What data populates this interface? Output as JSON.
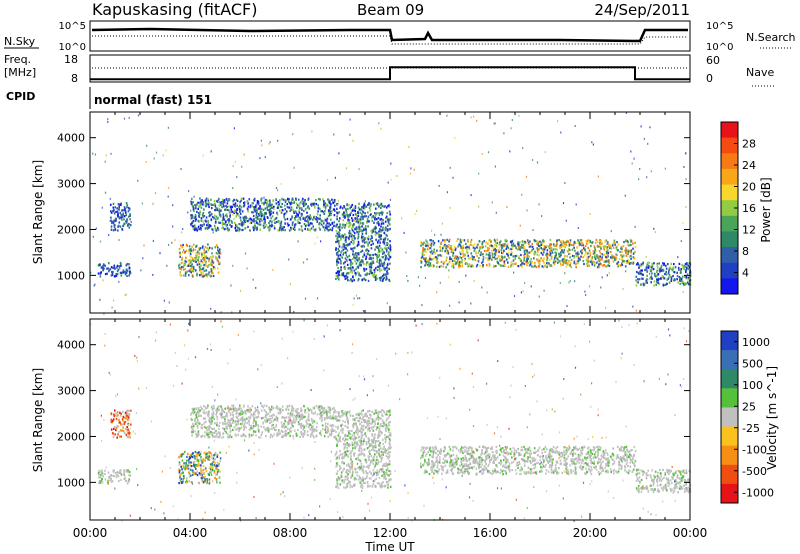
{
  "header": {
    "station": "Kapuskasing (fitACF)",
    "beam": "Beam 09",
    "date": "24/Sep/2011"
  },
  "panels": {
    "nsky": {
      "left_label": "N.Sky",
      "right_label": "N.Search",
      "left_ticks": [
        "10^5",
        "10^0"
      ],
      "right_ticks": [
        "10^5",
        "10^0"
      ]
    },
    "freq": {
      "left_label_top": "Freq.",
      "left_label_bottom": "[MHz]",
      "left_ticks": [
        "18",
        "8"
      ],
      "right_label": "Nave",
      "right_ticks": [
        "60",
        "0"
      ]
    },
    "cpid": {
      "label": "CPID",
      "text": "normal (fast) 151"
    }
  },
  "power_colorbar": {
    "title": "Power [dB]",
    "labels": [
      "28",
      "24",
      "20",
      "16",
      "12",
      "8",
      "4"
    ],
    "colors": [
      "#e8131a",
      "#f54a10",
      "#f77a14",
      "#f9a719",
      "#f8d62a",
      "#93cc43",
      "#4aa45a",
      "#2e8a66",
      "#2f5fa8",
      "#1f3fc4",
      "#1515ee"
    ]
  },
  "velocity_colorbar": {
    "title": "Velocity [m s^-1]",
    "labels": [
      "1000",
      "500",
      "100",
      "25",
      "-25",
      "-100",
      "-500",
      "-1000"
    ],
    "colors": [
      "#1f3fc4",
      "#3b6fb5",
      "#2e8a66",
      "#55c03a",
      "#c0c0c0",
      "#f9c21c",
      "#f78f14",
      "#f04e10",
      "#e8131a"
    ]
  },
  "time_axis": {
    "title": "Time UT",
    "ticks": [
      "00:00",
      "04:00",
      "08:00",
      "12:00",
      "16:00",
      "20:00",
      "00:00"
    ]
  },
  "chart_data": [
    {
      "type": "heatmap",
      "name": "power",
      "ylabel": "Slant Range [km]",
      "xlabel": "",
      "xlim": [
        0,
        24
      ],
      "ylim": [
        180,
        4560
      ],
      "y_ticks": [
        1000,
        2000,
        3000,
        4000
      ],
      "units_x": "hours UT",
      "echo_regions": [
        {
          "x": [
            0.3,
            1.6
          ],
          "y": [
            1000,
            1300
          ],
          "level": "low"
        },
        {
          "x": [
            0.8,
            1.6
          ],
          "y": [
            2000,
            2600
          ],
          "level": "low"
        },
        {
          "x": [
            3.5,
            5.2
          ],
          "y": [
            1000,
            1700
          ],
          "level": "high"
        },
        {
          "x": [
            4.0,
            9.8
          ],
          "y": [
            2000,
            2700
          ],
          "level": "mid"
        },
        {
          "x": [
            9.8,
            12.0
          ],
          "y": [
            900,
            2600
          ],
          "level": "mid"
        },
        {
          "x": [
            13.2,
            21.8
          ],
          "y": [
            1200,
            1800
          ],
          "level": "high"
        },
        {
          "x": [
            21.8,
            24.0
          ],
          "y": [
            800,
            1300
          ],
          "level": "mid"
        }
      ]
    },
    {
      "type": "heatmap",
      "name": "velocity",
      "ylabel": "Slant Range [km]",
      "xlabel": "Time UT",
      "xlim": [
        0,
        24
      ],
      "ylim": [
        180,
        4560
      ],
      "y_ticks": [
        1000,
        2000,
        3000,
        4000
      ],
      "units_x": "hours UT",
      "echo_regions": [
        {
          "x": [
            0.3,
            1.6
          ],
          "y": [
            1000,
            1300
          ],
          "level": "ground"
        },
        {
          "x": [
            0.8,
            1.6
          ],
          "y": [
            2000,
            2600
          ],
          "level": "negative"
        },
        {
          "x": [
            3.5,
            5.2
          ],
          "y": [
            1000,
            1700
          ],
          "level": "mixed"
        },
        {
          "x": [
            4.0,
            9.8
          ],
          "y": [
            2000,
            2700
          ],
          "level": "ground"
        },
        {
          "x": [
            9.8,
            12.0
          ],
          "y": [
            900,
            2600
          ],
          "level": "ground"
        },
        {
          "x": [
            13.2,
            21.8
          ],
          "y": [
            1200,
            1800
          ],
          "level": "ground"
        },
        {
          "x": [
            21.8,
            24.0
          ],
          "y": [
            800,
            1300
          ],
          "level": "ground"
        }
      ]
    },
    {
      "type": "line",
      "name": "transmit-frequency",
      "xlim": [
        0,
        24
      ],
      "ylim": [
        8,
        18
      ],
      "series": [
        {
          "x": [
            0,
            12,
            12,
            21.8,
            21.8,
            24
          ],
          "values": [
            9,
            9,
            13.5,
            13.5,
            9,
            9
          ]
        }
      ]
    }
  ]
}
